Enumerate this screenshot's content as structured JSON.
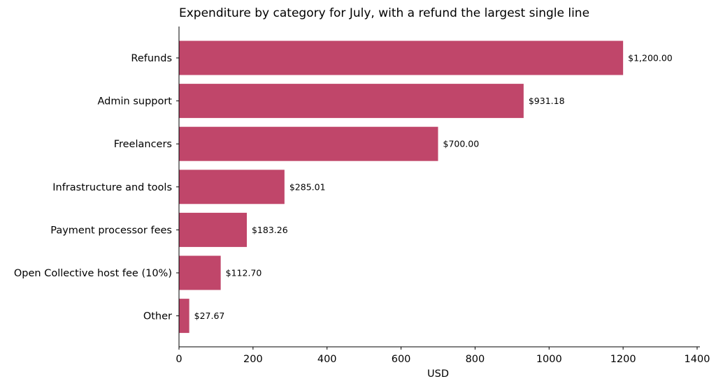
{
  "chart_data": {
    "type": "bar",
    "orientation": "horizontal",
    "title": "Expenditure by category for July, with a refund the largest single line",
    "xlabel": "USD",
    "ylabel": "",
    "categories": [
      "Refunds",
      "Admin support",
      "Freelancers",
      "Infrastructure and tools",
      "Payment processor fees",
      "Open Collective host fee (10%)",
      "Other"
    ],
    "values": [
      1200.0,
      931.18,
      700.0,
      285.01,
      183.26,
      112.7,
      27.67
    ],
    "value_labels": [
      "$1,200.00",
      "$931.18",
      "$700.00",
      "$285.01",
      "$183.26",
      "$112.70",
      "$27.67"
    ],
    "xlim": [
      0,
      1400
    ],
    "xticks": [
      0,
      200,
      400,
      600,
      800,
      1000,
      1200,
      1400
    ],
    "bar_color": "#c0466a",
    "grid": false
  }
}
